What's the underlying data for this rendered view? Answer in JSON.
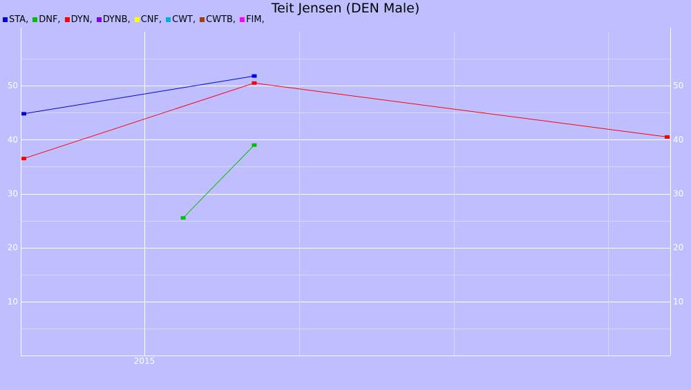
{
  "chart_data": {
    "type": "line",
    "title": "Teit Jensen (DEN Male)",
    "legend": [
      "STA,",
      "DNF,",
      "DYN,",
      "DYNB,",
      "CNF,",
      "CWT,",
      "CWTB,",
      "FIM,"
    ],
    "legend_colors": [
      "#0000e0",
      "#00c000",
      "#ff0000",
      "#8000ff",
      "#ffff00",
      "#00b0e0",
      "#a04000",
      "#ff00ff"
    ],
    "xlim": [
      2014.2,
      2018.4
    ],
    "ylim": [
      0,
      60
    ],
    "x_ticks": [
      {
        "value": 2015,
        "label": "2015"
      }
    ],
    "x_minor_grid": [
      2015,
      2016,
      2017,
      2018
    ],
    "y_ticks": [
      10,
      20,
      30,
      40,
      50
    ],
    "y_minor_grid": [
      5,
      15,
      25,
      35,
      45,
      55
    ],
    "grid": true,
    "legend_position": "top-left",
    "series": [
      {
        "name": "STA",
        "color": "#0000e0",
        "x": [
          2014.22,
          2015.71
        ],
        "y": [
          44.8,
          51.8
        ]
      },
      {
        "name": "DNF",
        "color": "#00c000",
        "x": [
          2015.25,
          2015.71
        ],
        "y": [
          25.5,
          39.0
        ]
      },
      {
        "name": "DYN",
        "color": "#ff0000",
        "x": [
          2014.22,
          2015.71,
          2018.38
        ],
        "y": [
          36.5,
          50.5,
          40.5
        ]
      }
    ]
  }
}
